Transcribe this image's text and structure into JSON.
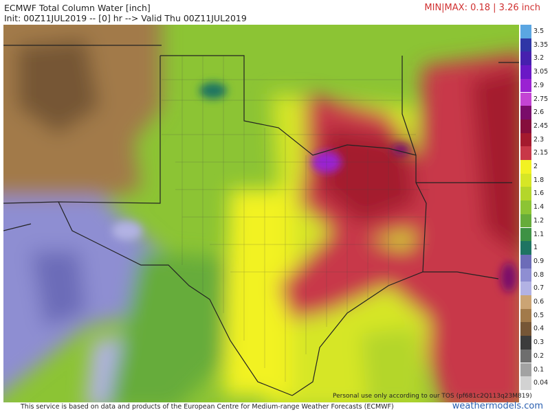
{
  "header": {
    "title": "ECMWF Total Column Water [inch]",
    "subtitle": "Init: 00Z11JUL2019 -- [0] hr --> Valid Thu 00Z11JUL2019",
    "minmax": "MIN|MAX: 0.18 | 3.26 inch"
  },
  "colorbar": [
    {
      "label": "3.5",
      "color": "#5ba6e2"
    },
    {
      "label": "3.35",
      "color": "#2f36a6"
    },
    {
      "label": "3.2",
      "color": "#4620ae"
    },
    {
      "label": "3.05",
      "color": "#6a18c6"
    },
    {
      "label": "2.9",
      "color": "#9a22d2"
    },
    {
      "label": "2.75",
      "color": "#c444d4"
    },
    {
      "label": "2.6",
      "color": "#7a0c6a"
    },
    {
      "label": "2.45",
      "color": "#860e3c"
    },
    {
      "label": "2.3",
      "color": "#a41a2e"
    },
    {
      "label": "2.15",
      "color": "#c83848"
    },
    {
      "label": "2",
      "color": "#f2f222"
    },
    {
      "label": "1.8",
      "color": "#d6e626"
    },
    {
      "label": "1.6",
      "color": "#b4d62a"
    },
    {
      "label": "1.4",
      "color": "#8cc434"
    },
    {
      "label": "1.2",
      "color": "#66ac3a"
    },
    {
      "label": "1.1",
      "color": "#3e9244"
    },
    {
      "label": "1",
      "color": "#1e7462"
    },
    {
      "label": "0.9",
      "color": "#6c6cb8"
    },
    {
      "label": "0.8",
      "color": "#8e8ed2"
    },
    {
      "label": "0.7",
      "color": "#b2b2e4"
    },
    {
      "label": "0.6",
      "color": "#cba474"
    },
    {
      "label": "0.5",
      "color": "#a27a4a"
    },
    {
      "label": "0.4",
      "color": "#765636"
    },
    {
      "label": "0.3",
      "color": "#3c3c3c"
    },
    {
      "label": "0.2",
      "color": "#6e6e6e"
    },
    {
      "label": "0.1",
      "color": "#a2a2a2"
    },
    {
      "label": "0.04",
      "color": "#d2d2d2"
    }
  ],
  "map": {
    "notice": "Personal use only according to our TOS (pf681c2Q113q23M819)"
  },
  "footer": {
    "source": "This service is based on data and products of the European Centre for Medium-range Weather Forecasts (ECMWF)",
    "site": "weathermodels.com"
  }
}
